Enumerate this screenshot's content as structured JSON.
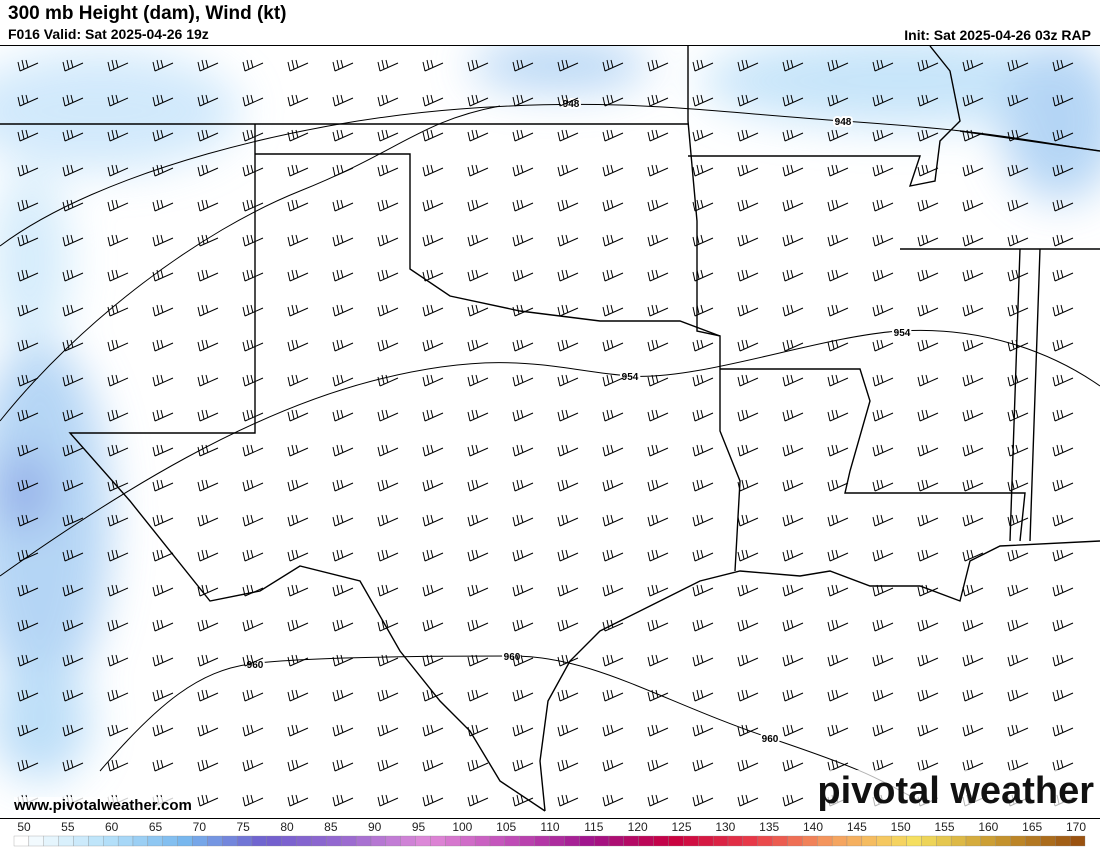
{
  "header": {
    "title": "300 mb Height (dam), Wind (kt)",
    "valid": "F016 Valid: Sat 2025-04-26 19z",
    "init": "Init: Sat 2025-04-26 03z RAP"
  },
  "footer": {
    "website": "www.pivotalweather.com",
    "logo": "pivotal weather"
  },
  "contours": {
    "labels": [
      "948",
      "948",
      "954",
      "954",
      "960",
      "960",
      "960"
    ]
  },
  "colorbar": {
    "ticks": [
      50,
      55,
      60,
      65,
      70,
      75,
      80,
      85,
      90,
      95,
      100,
      105,
      110,
      115,
      120,
      125,
      130,
      135,
      140,
      145,
      150,
      155,
      160,
      165,
      170
    ],
    "stops": [
      "#ffffff",
      "#b9e3fa",
      "#78b8ee",
      "#6f5fce",
      "#9a6ad0",
      "#e08ad8",
      "#c04eb8",
      "#a0148c",
      "#c80040",
      "#e83a48",
      "#f5a060",
      "#f5e060",
      "#c89830",
      "#9a5210"
    ]
  }
}
